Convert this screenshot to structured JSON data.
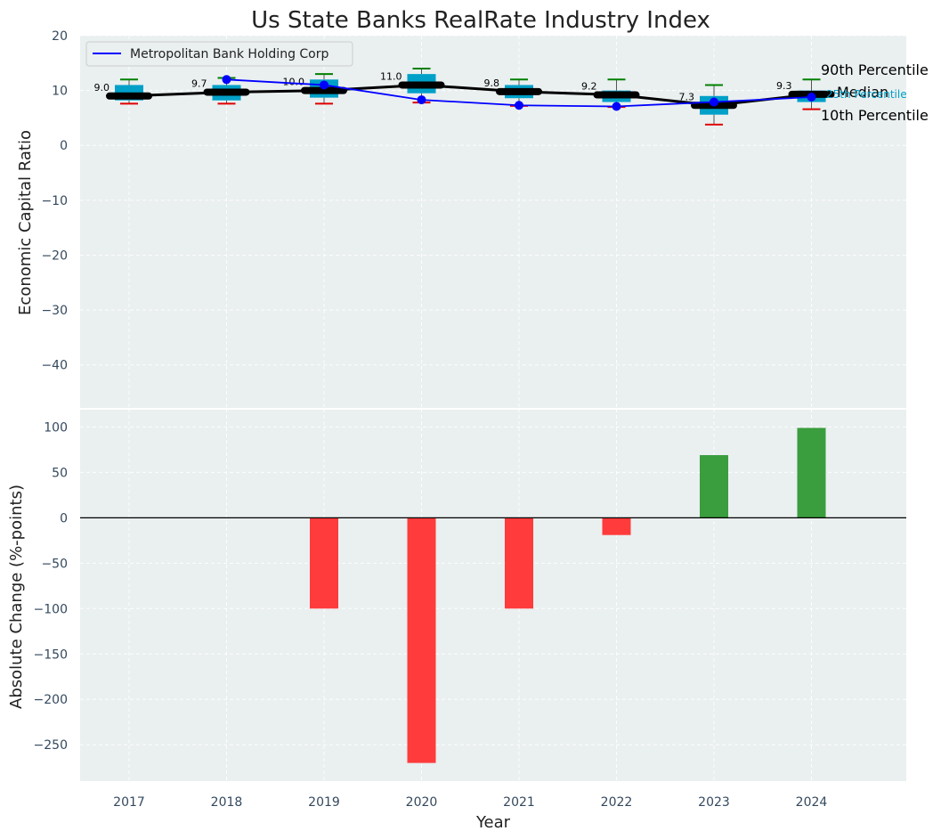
{
  "chart_data": [
    {
      "type": "box",
      "title": "Us State Banks RealRate Industry Index",
      "ylabel": "Economic Capital Ratio",
      "ylim": [
        -48,
        20
      ],
      "yticks": [
        20,
        10,
        0,
        -10,
        -20,
        -30,
        -40
      ],
      "categories": [
        "2017",
        "2018",
        "2019",
        "2020",
        "2021",
        "2022",
        "2023",
        "2024"
      ],
      "p10": [
        7.6,
        7.6,
        7.6,
        7.8,
        7.2,
        7.0,
        3.8,
        6.6
      ],
      "q1": [
        8.2,
        8.2,
        8.7,
        9.5,
        8.6,
        7.9,
        5.6,
        7.9
      ],
      "median": [
        9.0,
        9.7,
        10.0,
        11.0,
        9.8,
        9.2,
        7.3,
        9.3
      ],
      "median_labels": [
        "9.0",
        "9.7",
        "10.0",
        "11.0",
        "9.8",
        "9.2",
        "7.3",
        "9.3"
      ],
      "q3": [
        11.0,
        11.0,
        12.0,
        13.0,
        11.0,
        10.0,
        9.0,
        10.0
      ],
      "p90": [
        12.0,
        12.3,
        13.0,
        14.0,
        12.0,
        12.0,
        11.0,
        12.0
      ],
      "series": [
        {
          "name": "Metropolitan Bank Holding Corp",
          "values": [
            null,
            12.0,
            11.0,
            8.3,
            7.3,
            7.1,
            7.9,
            8.8
          ]
        }
      ],
      "annotations": {
        "p90": "90th Percentile",
        "median": "Median",
        "p10": "10th Percentile",
        "p25": "25th Percentile"
      },
      "legend": "top-left",
      "grid": true
    },
    {
      "type": "bar",
      "xlabel": "Year",
      "ylabel": "Absolute Change (%-points)",
      "ylim": [
        -290,
        120
      ],
      "yticks": [
        100,
        50,
        0,
        -50,
        -100,
        -150,
        -200,
        -250
      ],
      "categories": [
        "2017",
        "2018",
        "2019",
        "2020",
        "2021",
        "2022",
        "2023",
        "2024"
      ],
      "values": [
        0,
        0,
        -100,
        -270,
        -100,
        -19,
        69,
        99
      ],
      "grid": true
    }
  ],
  "colors": {
    "background": "#eaeff0",
    "box_fill": "#00a0c8",
    "median_line": "#000000",
    "whisker_top": "#008000",
    "whisker_bottom": "#e00000",
    "series_line": "#0000ff",
    "bar_positive": "#3a9e3e",
    "bar_negative": "#ff3b3b",
    "annotation_p25": "#00a0c8"
  }
}
